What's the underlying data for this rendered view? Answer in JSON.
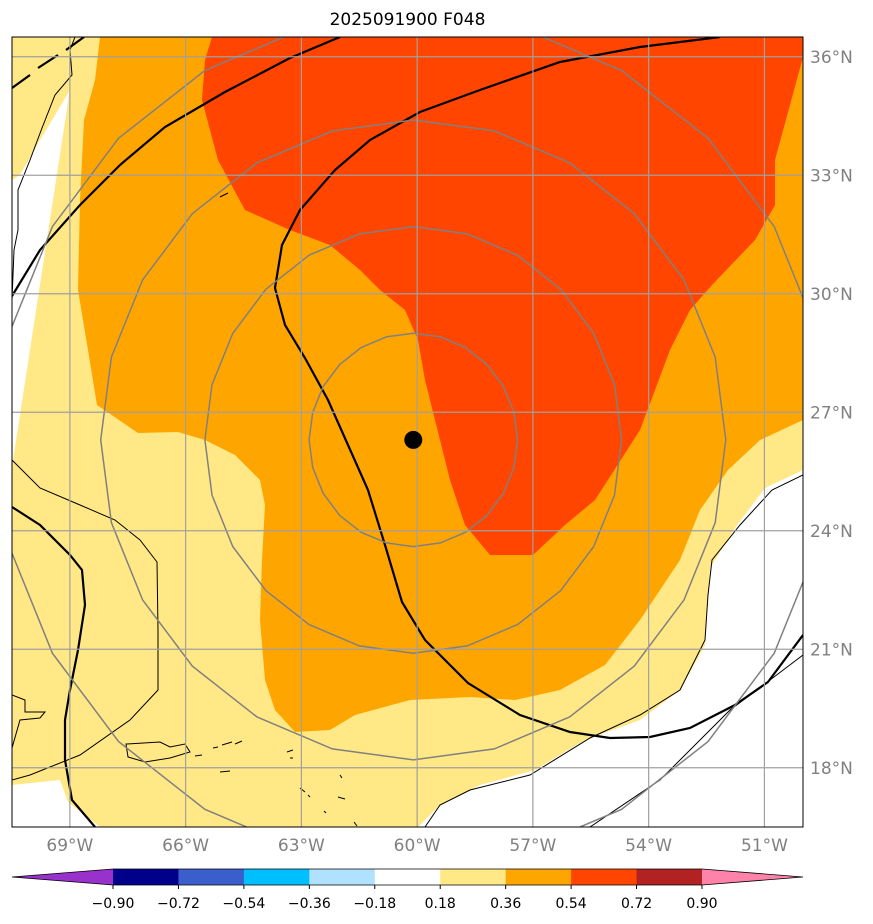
{
  "chart_data": {
    "type": "map",
    "title": "2025091900 F048",
    "projection": "lat-lon",
    "xlim": [
      -70.5,
      -50.0
    ],
    "ylim": [
      16.5,
      36.5
    ],
    "lon_ticks": [
      -69,
      -66,
      -63,
      -60,
      -57,
      -54,
      -51
    ],
    "lon_tick_labels": [
      "69°W",
      "66°W",
      "63°W",
      "60°W",
      "57°W",
      "54°W",
      "51°W"
    ],
    "lat_ticks": [
      18,
      21,
      24,
      27,
      30,
      33,
      36
    ],
    "lat_tick_labels": [
      "18°N",
      "21°N",
      "24°N",
      "27°N",
      "30°N",
      "33°N",
      "36°N"
    ],
    "grid": true,
    "center_point": {
      "lon": -60.1,
      "lat": 26.3
    },
    "range_rings_deg": [
      2.7,
      5.4,
      8.1,
      10.8
    ],
    "colorbar": {
      "orientation": "horizontal",
      "extend": "both",
      "levels": [
        -0.9,
        -0.72,
        -0.54,
        -0.36,
        -0.18,
        0.18,
        0.36,
        0.54,
        0.72,
        0.9
      ],
      "tick_labels": [
        "−0.90",
        "−0.72",
        "−0.54",
        "−0.36",
        "−0.18",
        "0.18",
        "0.36",
        "0.54",
        "0.72",
        "0.90"
      ],
      "colors": [
        "#9932cc",
        "#00008b",
        "#3a5fcd",
        "#00bfff",
        "#b0e2ff",
        "#ffffff",
        "#ffe885",
        "#ffa500",
        "#ff4500",
        "#b22222",
        "#ff82ab"
      ]
    },
    "filled_regions": [
      {
        "band": "0.18 to 0.36",
        "color": "#ffe885"
      },
      {
        "band": "0.36 to 0.54",
        "color": "#ffa500"
      },
      {
        "band": "0.54 to 0.72",
        "color": "#ff4500"
      }
    ]
  }
}
